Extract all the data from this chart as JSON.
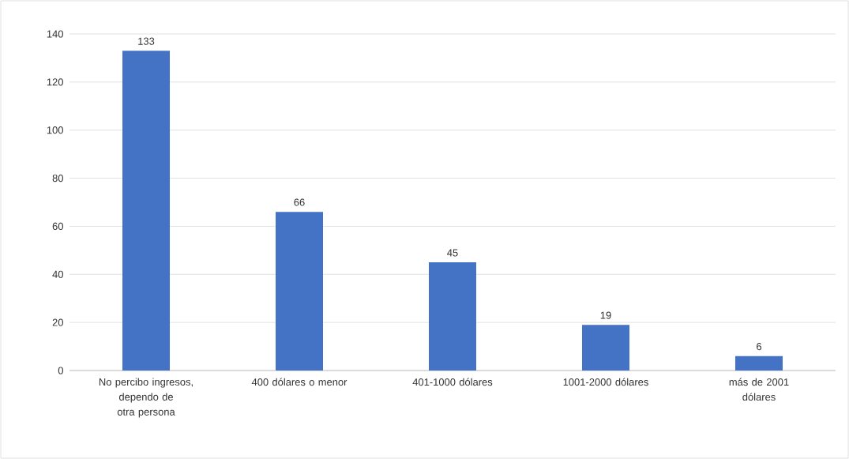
{
  "chart_data": {
    "type": "bar",
    "categories": [
      "No percibo ingresos, dependo de otra persona",
      "400 dólares o menor",
      "401-1000 dólares",
      "1001-2000 dólares",
      "más de 2001 dólares"
    ],
    "values": [
      133,
      66,
      45,
      19,
      6
    ],
    "color": "#4472c4",
    "ylim": [
      0,
      140
    ],
    "yticks": [
      0,
      20,
      40,
      60,
      80,
      100,
      120,
      140
    ],
    "grid": "y",
    "data_labels": true
  }
}
